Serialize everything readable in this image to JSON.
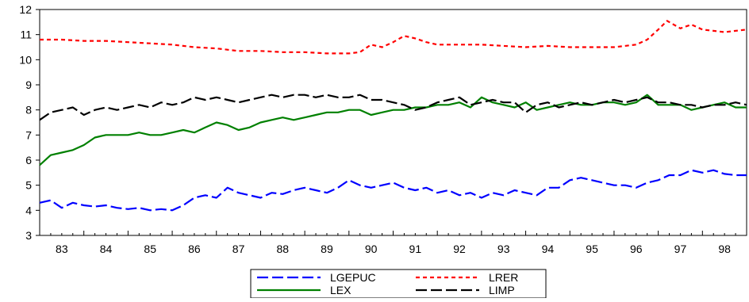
{
  "chart_data": {
    "type": "line",
    "title": "",
    "xlabel": "",
    "ylabel": "",
    "xlim": [
      1983.0,
      1999.0
    ],
    "ylim": [
      3,
      12
    ],
    "grid": false,
    "legend_position": "bottom-center",
    "x_tick_labels": [
      "83",
      "84",
      "85",
      "86",
      "87",
      "88",
      "89",
      "90",
      "91",
      "92",
      "93",
      "94",
      "95",
      "96",
      "97",
      "98"
    ],
    "y_tick_labels": [
      "3",
      "4",
      "5",
      "6",
      "7",
      "8",
      "9",
      "10",
      "11",
      "12"
    ],
    "series": [
      {
        "name": "LGEPUC",
        "color": "#0000ff",
        "dash": "long-dash",
        "x": [
          1983.0,
          1983.25,
          1983.5,
          1983.75,
          1984.0,
          1984.25,
          1984.5,
          1984.75,
          1985.0,
          1985.25,
          1985.5,
          1985.75,
          1986.0,
          1986.25,
          1986.5,
          1986.75,
          1987.0,
          1987.25,
          1987.5,
          1987.75,
          1988.0,
          1988.25,
          1988.5,
          1988.75,
          1989.0,
          1989.25,
          1989.5,
          1989.75,
          1990.0,
          1990.25,
          1990.5,
          1990.75,
          1991.0,
          1991.25,
          1991.5,
          1991.75,
          1992.0,
          1992.25,
          1992.5,
          1992.75,
          1993.0,
          1993.25,
          1993.5,
          1993.75,
          1994.0,
          1994.25,
          1994.5,
          1994.75,
          1995.0,
          1995.25,
          1995.5,
          1995.75,
          1996.0,
          1996.25,
          1996.5,
          1996.75,
          1997.0,
          1997.25,
          1997.5,
          1997.75,
          1998.0,
          1998.25,
          1998.5,
          1998.75,
          1999.0
        ],
        "values": [
          4.3,
          4.4,
          4.1,
          4.3,
          4.2,
          4.15,
          4.2,
          4.1,
          4.05,
          4.1,
          4.0,
          4.05,
          4.0,
          4.2,
          4.5,
          4.6,
          4.5,
          4.9,
          4.7,
          4.6,
          4.5,
          4.7,
          4.65,
          4.8,
          4.9,
          4.8,
          4.7,
          4.9,
          5.2,
          5.0,
          4.9,
          5.0,
          5.1,
          4.9,
          4.8,
          4.9,
          4.7,
          4.8,
          4.6,
          4.7,
          4.5,
          4.7,
          4.6,
          4.8,
          4.7,
          4.6,
          4.9,
          4.9,
          5.2,
          5.3,
          5.2,
          5.1,
          5.0,
          5.0,
          4.9,
          5.1,
          5.2,
          5.4,
          5.4,
          5.6,
          5.5,
          5.6,
          5.45,
          5.4,
          5.4
        ]
      },
      {
        "name": "LRER",
        "color": "#ff0000",
        "dash": "short-dash",
        "x": [
          1983.0,
          1983.5,
          1984.0,
          1984.5,
          1985.0,
          1985.5,
          1986.0,
          1986.5,
          1987.0,
          1987.5,
          1988.0,
          1988.5,
          1989.0,
          1989.5,
          1990.0,
          1990.25,
          1990.5,
          1990.75,
          1991.0,
          1991.25,
          1991.5,
          1991.75,
          1992.0,
          1992.5,
          1993.0,
          1993.5,
          1994.0,
          1994.5,
          1995.0,
          1995.5,
          1996.0,
          1996.5,
          1996.75,
          1997.0,
          1997.2,
          1997.5,
          1997.75,
          1998.0,
          1998.5,
          1999.0
        ],
        "values": [
          10.8,
          10.8,
          10.75,
          10.75,
          10.7,
          10.65,
          10.6,
          10.5,
          10.45,
          10.35,
          10.35,
          10.3,
          10.3,
          10.25,
          10.25,
          10.3,
          10.6,
          10.5,
          10.7,
          10.95,
          10.85,
          10.7,
          10.6,
          10.6,
          10.6,
          10.55,
          10.5,
          10.55,
          10.5,
          10.5,
          10.5,
          10.6,
          10.8,
          11.2,
          11.55,
          11.25,
          11.4,
          11.2,
          11.1,
          11.2
        ]
      },
      {
        "name": "LEX",
        "color": "#008000",
        "dash": "solid",
        "x": [
          1983.0,
          1983.25,
          1983.5,
          1983.75,
          1984.0,
          1984.25,
          1984.5,
          1984.75,
          1985.0,
          1985.25,
          1985.5,
          1985.75,
          1986.0,
          1986.25,
          1986.5,
          1986.75,
          1987.0,
          1987.25,
          1987.5,
          1987.75,
          1988.0,
          1988.25,
          1988.5,
          1988.75,
          1989.0,
          1989.25,
          1989.5,
          1989.75,
          1990.0,
          1990.25,
          1990.5,
          1990.75,
          1991.0,
          1991.25,
          1991.5,
          1991.75,
          1992.0,
          1992.25,
          1992.5,
          1992.75,
          1993.0,
          1993.25,
          1993.5,
          1993.75,
          1994.0,
          1994.25,
          1994.5,
          1994.75,
          1995.0,
          1995.25,
          1995.5,
          1995.75,
          1996.0,
          1996.25,
          1996.5,
          1996.75,
          1997.0,
          1997.25,
          1997.5,
          1997.75,
          1998.0,
          1998.25,
          1998.5,
          1998.75,
          1999.0
        ],
        "values": [
          5.8,
          6.2,
          6.3,
          6.4,
          6.6,
          6.9,
          7.0,
          7.0,
          7.0,
          7.1,
          7.0,
          7.0,
          7.1,
          7.2,
          7.1,
          7.3,
          7.5,
          7.4,
          7.2,
          7.3,
          7.5,
          7.6,
          7.7,
          7.6,
          7.7,
          7.8,
          7.9,
          7.9,
          8.0,
          8.0,
          7.8,
          7.9,
          8.0,
          8.0,
          8.1,
          8.1,
          8.2,
          8.2,
          8.3,
          8.1,
          8.5,
          8.3,
          8.2,
          8.1,
          8.3,
          8.0,
          8.1,
          8.2,
          8.3,
          8.2,
          8.2,
          8.3,
          8.3,
          8.2,
          8.3,
          8.6,
          8.2,
          8.2,
          8.2,
          8.0,
          8.1,
          8.2,
          8.3,
          8.1,
          8.1
        ]
      },
      {
        "name": "LIMP",
        "color": "#000000",
        "dash": "long-dash",
        "x": [
          1983.0,
          1983.25,
          1983.5,
          1983.75,
          1984.0,
          1984.25,
          1984.5,
          1984.75,
          1985.0,
          1985.25,
          1985.5,
          1985.75,
          1986.0,
          1986.25,
          1986.5,
          1986.75,
          1987.0,
          1987.25,
          1987.5,
          1987.75,
          1988.0,
          1988.25,
          1988.5,
          1988.75,
          1989.0,
          1989.25,
          1989.5,
          1989.75,
          1990.0,
          1990.25,
          1990.5,
          1990.75,
          1991.0,
          1991.25,
          1991.5,
          1991.75,
          1992.0,
          1992.25,
          1992.5,
          1992.75,
          1993.0,
          1993.25,
          1993.5,
          1993.75,
          1994.0,
          1994.25,
          1994.5,
          1994.75,
          1995.0,
          1995.25,
          1995.5,
          1995.75,
          1996.0,
          1996.25,
          1996.5,
          1996.75,
          1997.0,
          1997.25,
          1997.5,
          1997.75,
          1998.0,
          1998.25,
          1998.5,
          1998.75,
          1999.0
        ],
        "values": [
          7.6,
          7.9,
          8.0,
          8.1,
          7.8,
          8.0,
          8.1,
          8.0,
          8.1,
          8.2,
          8.1,
          8.3,
          8.2,
          8.3,
          8.5,
          8.4,
          8.5,
          8.4,
          8.3,
          8.4,
          8.5,
          8.6,
          8.5,
          8.6,
          8.6,
          8.5,
          8.6,
          8.5,
          8.5,
          8.6,
          8.4,
          8.4,
          8.3,
          8.2,
          8.0,
          8.1,
          8.3,
          8.4,
          8.5,
          8.2,
          8.3,
          8.4,
          8.3,
          8.3,
          7.9,
          8.2,
          8.3,
          8.1,
          8.2,
          8.3,
          8.2,
          8.3,
          8.4,
          8.3,
          8.4,
          8.5,
          8.3,
          8.3,
          8.2,
          8.2,
          8.1,
          8.2,
          8.2,
          8.3,
          8.2
        ]
      }
    ]
  }
}
